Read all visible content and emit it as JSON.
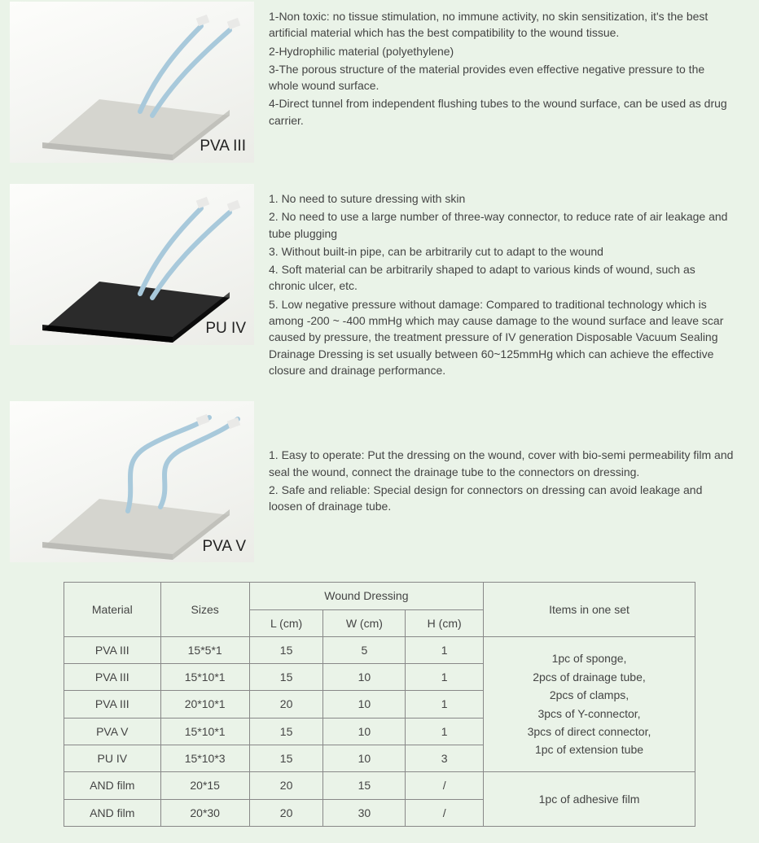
{
  "products": [
    {
      "label": "PVA III",
      "image_variant": "light-slab",
      "desc": [
        "1-Non toxic: no tissue stimulation, no immune activity, no skin sensitization, it's the best artificial material which has the best compatibility to the wound tissue.",
        "2-Hydrophilic material (polyethylene)",
        "3-The porous structure of the material provides even effective negative pressure to the whole wound surface.",
        "4-Direct tunnel from independent flushing tubes to the wound surface, can be used as drug carrier."
      ]
    },
    {
      "label": "PU IV",
      "image_variant": "dark-slab",
      "desc": [
        "1. No need to suture dressing with skin",
        "2. No need to use a large number of three-way connector, to reduce rate of air leakage and tube plugging",
        "3. Without built-in pipe, can be arbitrarily cut to adapt to the wound",
        "4. Soft material can be arbitrarily shaped to adapt to various kinds of wound, such as chronic ulcer, etc.",
        "5. Low negative pressure without damage: Compared to traditional technology which is among -200 ~ -400 mmHg which may cause damage to the wound surface and leave scar caused by pressure, the treatment pressure of IV generation Disposable Vacuum Sealing Drainage Dressing is set usually between 60~125mmHg which can achieve the effective closure and drainage performance."
      ]
    },
    {
      "label": "PVA V",
      "image_variant": "light-slab-2",
      "desc": [
        "1. Easy to operate: Put the dressing on the wound, cover with bio-semi permeability film and seal the wound, connect the drainage tube to the connectors on dressing.",
        "2. Safe and reliable: Special design for connectors on dressing can avoid leakage and loosen of drainage tube."
      ]
    }
  ],
  "table": {
    "headers": {
      "material": "Material",
      "sizes": "Sizes",
      "wound_dressing": "Wound Dressing",
      "l": "L (cm)",
      "w": "W (cm)",
      "h": "H (cm)",
      "items": "Items in one set"
    },
    "rows_group1": [
      {
        "material": "PVA III",
        "sizes": "15*5*1",
        "l": "15",
        "w": "5",
        "h": "1"
      },
      {
        "material": "PVA III",
        "sizes": "15*10*1",
        "l": "15",
        "w": "10",
        "h": "1"
      },
      {
        "material": "PVA III",
        "sizes": "20*10*1",
        "l": "20",
        "w": "10",
        "h": "1"
      },
      {
        "material": "PVA V",
        "sizes": "15*10*1",
        "l": "15",
        "w": "10",
        "h": "1"
      },
      {
        "material": "PU IV",
        "sizes": "15*10*3",
        "l": "15",
        "w": "10",
        "h": "3"
      }
    ],
    "items_group1": [
      "1pc of sponge,",
      "2pcs of drainage tube,",
      "2pcs of clamps,",
      "3pcs of Y-connector,",
      "3pcs of direct connector,",
      "1pc of extension tube"
    ],
    "rows_group2": [
      {
        "material": "AND film",
        "sizes": "20*15",
        "l": "20",
        "w": "15",
        "h": "/"
      },
      {
        "material": "AND film",
        "sizes": "20*30",
        "l": "20",
        "w": "30",
        "h": "/"
      }
    ],
    "items_group2": "1pc of adhesive film"
  },
  "style": {
    "page_bg": "#eaf3e8",
    "border_color": "#888888",
    "text_color": "#444444",
    "slab_light": "#d5d5cf",
    "slab_dark": "#2b2b2b",
    "tube_color": "#a8c9db"
  }
}
